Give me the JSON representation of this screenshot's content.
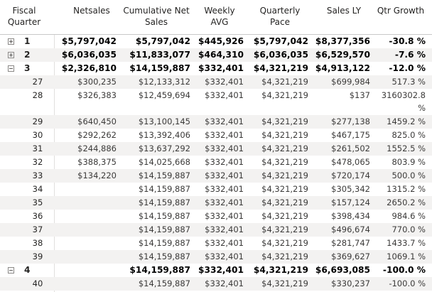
{
  "headers": {
    "fiscal_quarter": [
      "Fiscal",
      "Quarter"
    ],
    "netsales": [
      "Netsales"
    ],
    "cumulative_net_sales": [
      "Cumulative Net",
      "Sales"
    ],
    "weekly_avg": [
      "Weekly",
      "AVG"
    ],
    "quarterly_pace": [
      "Quarterly",
      "Pace"
    ],
    "sales_ly": [
      "Sales LY"
    ],
    "qtr_growth": [
      "Qtr Growth"
    ]
  },
  "rows": [
    {
      "level": 1,
      "toggle": "plus",
      "label": "1",
      "netsales": "$5,797,042",
      "cumulative": "$5,797,042",
      "weekly_avg": "$445,926",
      "pace": "$5,797,042",
      "sales_ly": "$8,377,356",
      "growth": "-30.8 %"
    },
    {
      "level": 1,
      "toggle": "plus",
      "label": "2",
      "netsales": "$6,036,035",
      "cumulative": "$11,833,077",
      "weekly_avg": "$464,310",
      "pace": "$6,036,035",
      "sales_ly": "$6,529,570",
      "growth": "-7.6 %"
    },
    {
      "level": 1,
      "toggle": "minus",
      "label": "3",
      "netsales": "$2,326,810",
      "cumulative": "$14,159,887",
      "weekly_avg": "$332,401",
      "pace": "$4,321,219",
      "sales_ly": "$4,913,122",
      "growth": "-12.0 %"
    },
    {
      "level": 2,
      "label": "27",
      "netsales": "$300,235",
      "cumulative": "$12,133,312",
      "weekly_avg": "$332,401",
      "pace": "$4,321,219",
      "sales_ly": "$699,984",
      "growth": "517.3 %"
    },
    {
      "level": 2,
      "label": "28",
      "netsales": "$326,383",
      "cumulative": "$12,459,694",
      "weekly_avg": "$332,401",
      "pace": "$4,321,219",
      "sales_ly": "$137",
      "growth": "3160302.8",
      "growth_wrap": "%"
    },
    {
      "level": 2,
      "label": "29",
      "netsales": "$640,450",
      "cumulative": "$13,100,145",
      "weekly_avg": "$332,401",
      "pace": "$4,321,219",
      "sales_ly": "$277,138",
      "growth": "1459.2 %"
    },
    {
      "level": 2,
      "label": "30",
      "netsales": "$292,262",
      "cumulative": "$13,392,406",
      "weekly_avg": "$332,401",
      "pace": "$4,321,219",
      "sales_ly": "$467,175",
      "growth": "825.0 %"
    },
    {
      "level": 2,
      "label": "31",
      "netsales": "$244,886",
      "cumulative": "$13,637,292",
      "weekly_avg": "$332,401",
      "pace": "$4,321,219",
      "sales_ly": "$261,502",
      "growth": "1552.5 %"
    },
    {
      "level": 2,
      "label": "32",
      "netsales": "$388,375",
      "cumulative": "$14,025,668",
      "weekly_avg": "$332,401",
      "pace": "$4,321,219",
      "sales_ly": "$478,065",
      "growth": "803.9 %"
    },
    {
      "level": 2,
      "label": "33",
      "netsales": "$134,220",
      "cumulative": "$14,159,887",
      "weekly_avg": "$332,401",
      "pace": "$4,321,219",
      "sales_ly": "$720,174",
      "growth": "500.0 %"
    },
    {
      "level": 2,
      "label": "34",
      "netsales": "",
      "cumulative": "$14,159,887",
      "weekly_avg": "$332,401",
      "pace": "$4,321,219",
      "sales_ly": "$305,342",
      "growth": "1315.2 %"
    },
    {
      "level": 2,
      "label": "35",
      "netsales": "",
      "cumulative": "$14,159,887",
      "weekly_avg": "$332,401",
      "pace": "$4,321,219",
      "sales_ly": "$157,124",
      "growth": "2650.2 %"
    },
    {
      "level": 2,
      "label": "36",
      "netsales": "",
      "cumulative": "$14,159,887",
      "weekly_avg": "$332,401",
      "pace": "$4,321,219",
      "sales_ly": "$398,434",
      "growth": "984.6 %"
    },
    {
      "level": 2,
      "label": "37",
      "netsales": "",
      "cumulative": "$14,159,887",
      "weekly_avg": "$332,401",
      "pace": "$4,321,219",
      "sales_ly": "$496,674",
      "growth": "770.0 %"
    },
    {
      "level": 2,
      "label": "38",
      "netsales": "",
      "cumulative": "$14,159,887",
      "weekly_avg": "$332,401",
      "pace": "$4,321,219",
      "sales_ly": "$281,747",
      "growth": "1433.7 %"
    },
    {
      "level": 2,
      "label": "39",
      "netsales": "",
      "cumulative": "$14,159,887",
      "weekly_avg": "$332,401",
      "pace": "$4,321,219",
      "sales_ly": "$369,627",
      "growth": "1069.1 %"
    },
    {
      "level": 1,
      "toggle": "minus",
      "label": "4",
      "netsales": "",
      "cumulative": "$14,159,887",
      "weekly_avg": "$332,401",
      "pace": "$4,321,219",
      "sales_ly": "$6,693,085",
      "growth": "-100.0 %"
    },
    {
      "level": 2,
      "label": "40",
      "netsales": "",
      "cumulative": "$14,159,887",
      "weekly_avg": "$332,401",
      "pace": "$4,321,219",
      "sales_ly": "$330,237",
      "growth": "-100.0 %"
    }
  ]
}
